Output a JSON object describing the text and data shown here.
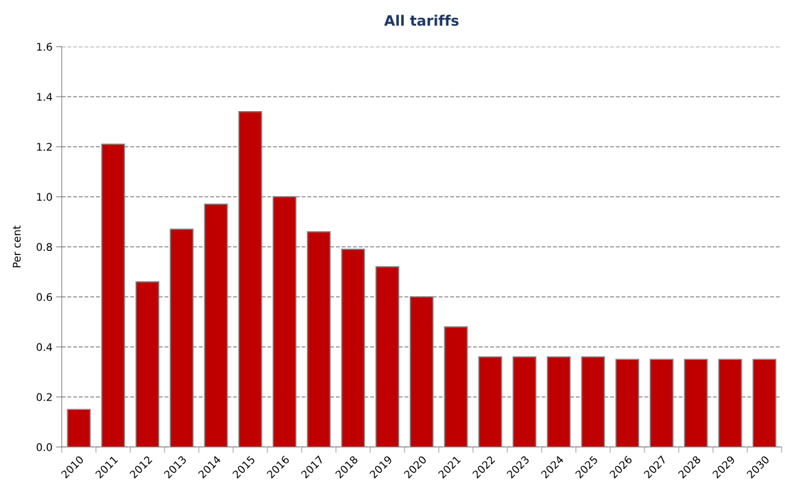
{
  "chart_data": {
    "type": "bar",
    "title": "All tariffs",
    "ylabel": "Per cent",
    "categories": [
      "2010",
      "2011",
      "2012",
      "2013",
      "2014",
      "2015",
      "2016",
      "2017",
      "2018",
      "2019",
      "2020",
      "2021",
      "2022",
      "2023",
      "2024",
      "2025",
      "2026",
      "2027",
      "2028",
      "2029",
      "2030"
    ],
    "values": [
      0.15,
      1.21,
      0.66,
      0.87,
      0.97,
      1.34,
      1.0,
      0.86,
      0.79,
      0.72,
      0.6,
      0.48,
      0.36,
      0.36,
      0.36,
      0.36,
      0.35,
      0.35,
      0.35,
      0.35,
      0.35
    ],
    "color": "#c00000",
    "ylim": [
      0,
      1.6
    ],
    "yticks": [
      {
        "value": 0,
        "label": "0.0"
      },
      {
        "value": 0.2,
        "label": "0.2"
      },
      {
        "value": 0.4,
        "label": "0.4"
      },
      {
        "value": 0.6,
        "label": "0.6"
      },
      {
        "value": 0.8,
        "label": "0.8"
      },
      {
        "value": 1.0,
        "label": "1.0"
      },
      {
        "value": 1.2,
        "label": "1.2"
      },
      {
        "value": 1.4,
        "label": "1.4"
      },
      {
        "value": 1.6,
        "label": "1.6"
      }
    ],
    "grid": "y"
  }
}
